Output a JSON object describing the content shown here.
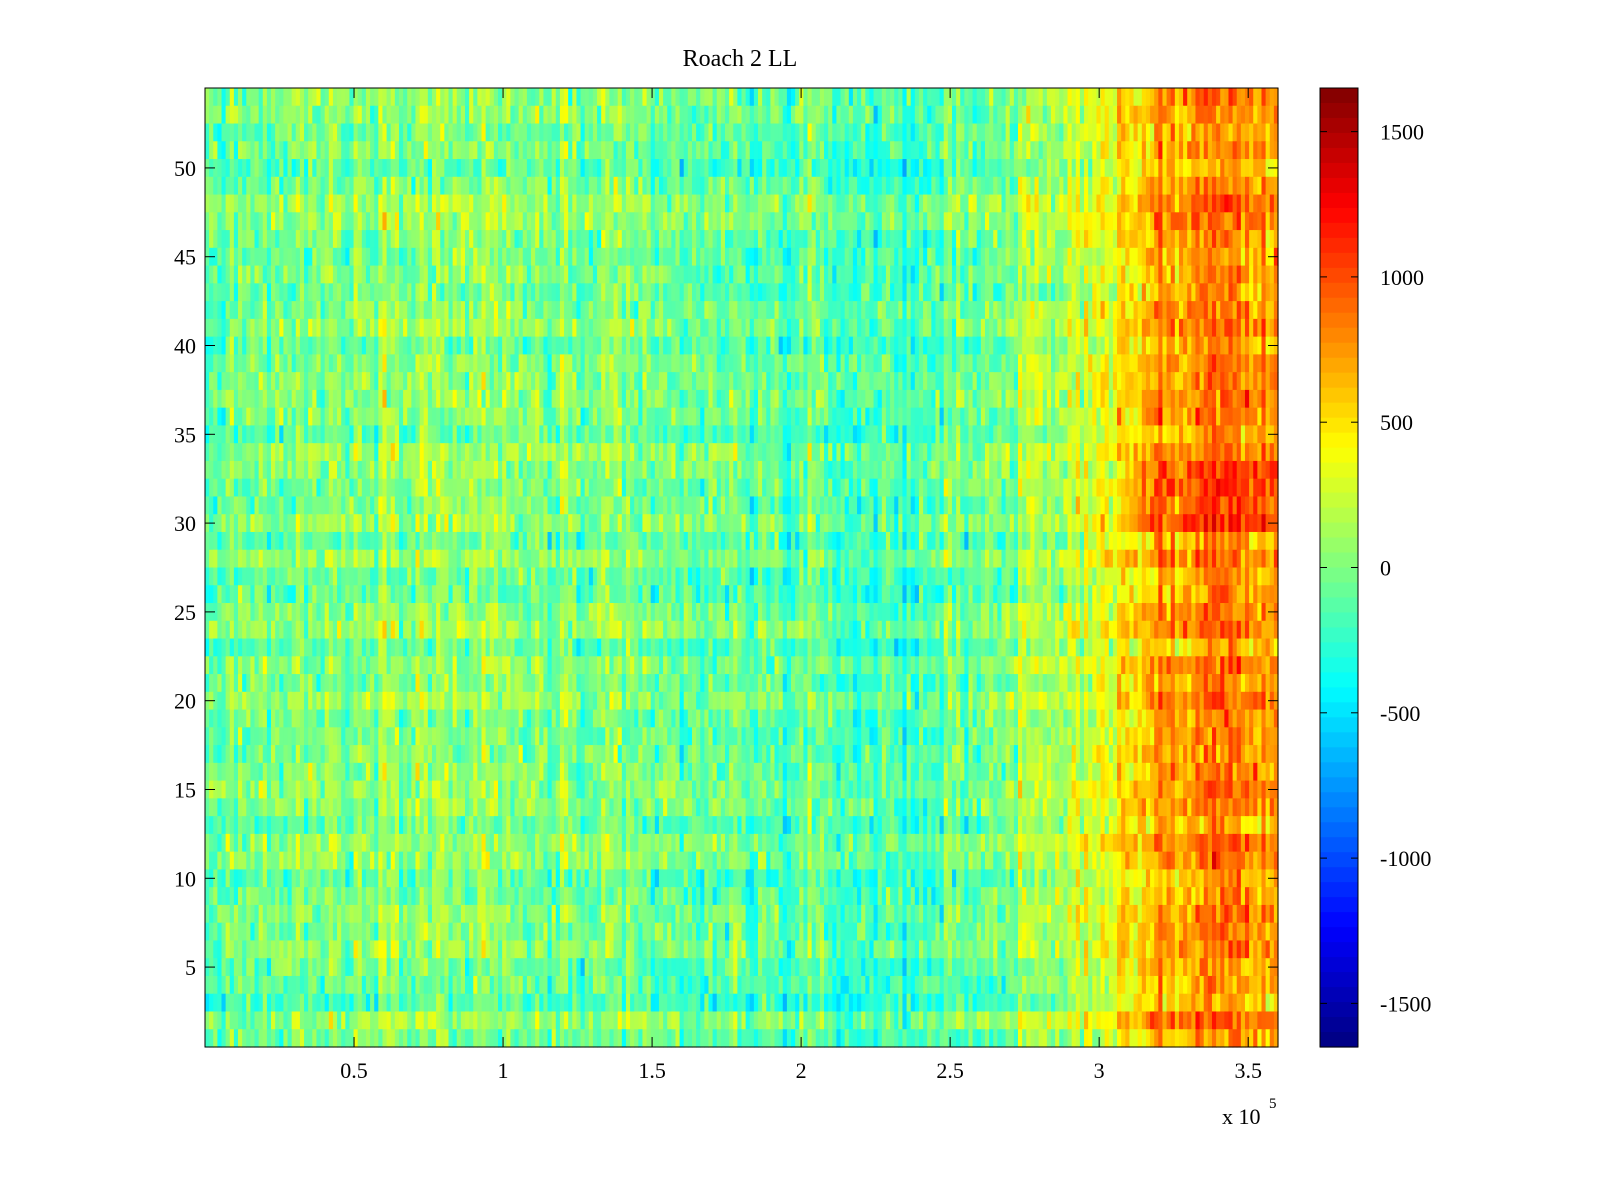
{
  "chart_data": {
    "type": "heatmap",
    "title": "Roach 2 LL",
    "xlabel": "",
    "ylabel": "",
    "x_multiplier_base": "x 10",
    "x_multiplier_exponent": "5",
    "xlim": [
      0,
      3.6
    ],
    "ylim": [
      0.5,
      54.5
    ],
    "xticks": [
      0.5,
      1,
      1.5,
      2,
      2.5,
      3,
      3.5
    ],
    "xtick_labels": [
      "0.5",
      "1",
      "1.5",
      "2",
      "2.5",
      "3",
      "3.5"
    ],
    "yticks": [
      5,
      10,
      15,
      20,
      25,
      30,
      35,
      40,
      45,
      50
    ],
    "ytick_labels": [
      "5",
      "10",
      "15",
      "20",
      "25",
      "30",
      "35",
      "40",
      "45",
      "50"
    ],
    "rows": 54,
    "colormap": "jet",
    "clim": [
      -1650,
      1650
    ],
    "colorbar_ticks": [
      1500,
      1000,
      500,
      0,
      -500,
      -1000,
      -1500
    ],
    "colorbar_tick_labels": [
      "1500",
      "1000",
      "500",
      "0",
      "-500",
      "-1000",
      "-1500"
    ],
    "trend_profile": {
      "x": [
        0,
        0.4,
        0.65,
        0.8,
        1.0,
        1.3,
        1.6,
        1.9,
        2.2,
        2.4,
        2.5,
        2.7,
        2.9,
        3.0,
        3.2,
        3.4,
        3.6
      ],
      "mean_value": [
        -50,
        0,
        120,
        60,
        20,
        -60,
        -100,
        -120,
        -180,
        -200,
        -60,
        20,
        150,
        350,
        650,
        850,
        700
      ]
    },
    "noise_amplitude": 260
  }
}
